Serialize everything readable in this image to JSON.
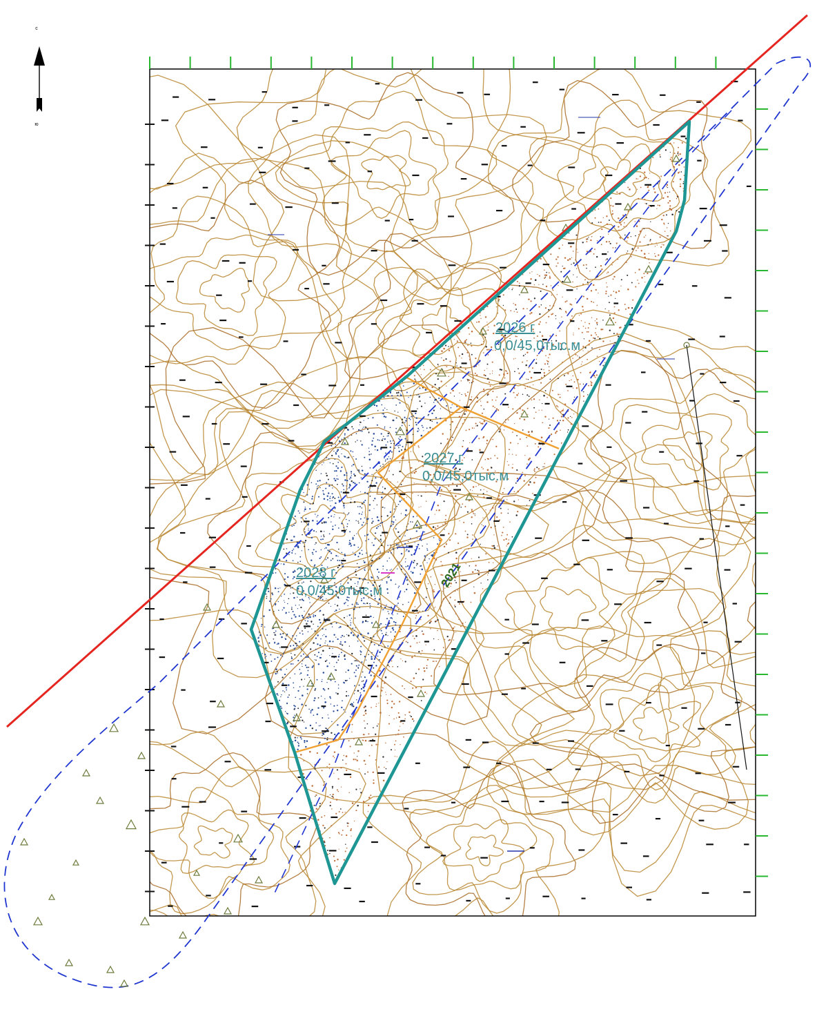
{
  "map": {
    "north_arrow": {
      "top_letter": "с",
      "bottom_letter": "ю"
    },
    "zones": [
      {
        "id": "2026",
        "year": "2026 г",
        "volume": "0,0/45,0тыс.м"
      },
      {
        "id": "2027",
        "year": "2027 г",
        "volume": "0,0/45,0тыс.м"
      },
      {
        "id": "2028",
        "year": "2028 г",
        "volume": "0,0/45,0тыс.м"
      }
    ],
    "contour_label": "2021",
    "colors": {
      "contour": "#b8862f",
      "boundary": "#1e9693",
      "zone_divider": "#f0a030",
      "fault_line": "#e52620",
      "dashed_outline": "#2036d0",
      "grid_tick": "#27b830",
      "frame": "#000000",
      "fill_2026": "#c0703a",
      "fill_2028": "#2a4d9a",
      "triangle": "#6b7b3a"
    }
  }
}
